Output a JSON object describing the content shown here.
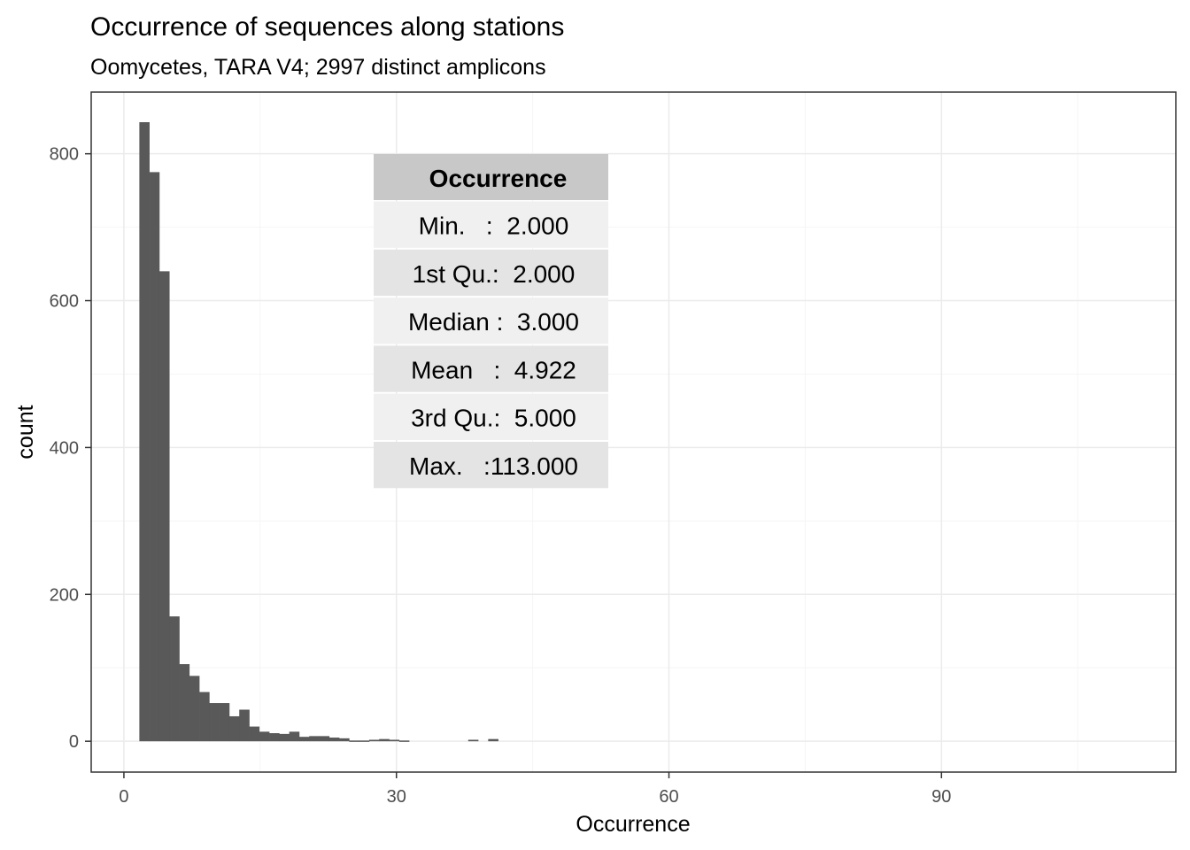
{
  "chart_data": {
    "type": "bar",
    "title": "Occurrence of sequences along stations",
    "subtitle": "Oomycetes, TARA V4; 2997 distinct amplicons",
    "xlabel": "Occurrence",
    "ylabel": "count",
    "xlim": [
      -3.6,
      115.8
    ],
    "ylim": [
      -42,
      884
    ],
    "x_ticks": [
      0,
      30,
      60,
      90
    ],
    "y_ticks": [
      0,
      200,
      400,
      600,
      800
    ],
    "x_minor": [
      15,
      45,
      75,
      105
    ],
    "y_minor": [
      100,
      300,
      500,
      700
    ],
    "grid": true,
    "bin_width": 1.1,
    "bins": [
      {
        "start": 1.7,
        "count": 843
      },
      {
        "start": 2.8,
        "count": 775
      },
      {
        "start": 3.9,
        "count": 640
      },
      {
        "start": 5.0,
        "count": 170
      },
      {
        "start": 6.1,
        "count": 105
      },
      {
        "start": 7.2,
        "count": 89
      },
      {
        "start": 8.3,
        "count": 67
      },
      {
        "start": 9.4,
        "count": 52
      },
      {
        "start": 10.5,
        "count": 52
      },
      {
        "start": 11.6,
        "count": 34
      },
      {
        "start": 12.7,
        "count": 43
      },
      {
        "start": 13.8,
        "count": 20
      },
      {
        "start": 14.9,
        "count": 13
      },
      {
        "start": 16.0,
        "count": 11
      },
      {
        "start": 17.1,
        "count": 10
      },
      {
        "start": 18.2,
        "count": 13
      },
      {
        "start": 19.3,
        "count": 6
      },
      {
        "start": 20.4,
        "count": 7
      },
      {
        "start": 21.5,
        "count": 7
      },
      {
        "start": 22.6,
        "count": 5
      },
      {
        "start": 23.7,
        "count": 4
      },
      {
        "start": 24.8,
        "count": 1
      },
      {
        "start": 25.9,
        "count": 1
      },
      {
        "start": 27.0,
        "count": 2
      },
      {
        "start": 28.1,
        "count": 3
      },
      {
        "start": 29.2,
        "count": 2
      },
      {
        "start": 30.3,
        "count": 1
      },
      {
        "start": 37.9,
        "count": 2
      },
      {
        "start": 40.1,
        "count": 3
      }
    ],
    "annotation_table": {
      "header": "Occurrence",
      "rows": [
        "Min.   :  2.000",
        "1st Qu.:  2.000",
        "Median :  3.000",
        "Mean   :  4.922",
        "3rd Qu.:  5.000",
        "Max.   :113.000"
      ]
    },
    "colors": {
      "bar": "#595959",
      "panel_border": "#333333",
      "grid_major": "#ebebeb",
      "grid_minor": "#f5f5f5",
      "table_header": "#c8c8c8",
      "table_row_light": "#f0f0f0",
      "table_row_dark": "#e4e4e4"
    }
  }
}
